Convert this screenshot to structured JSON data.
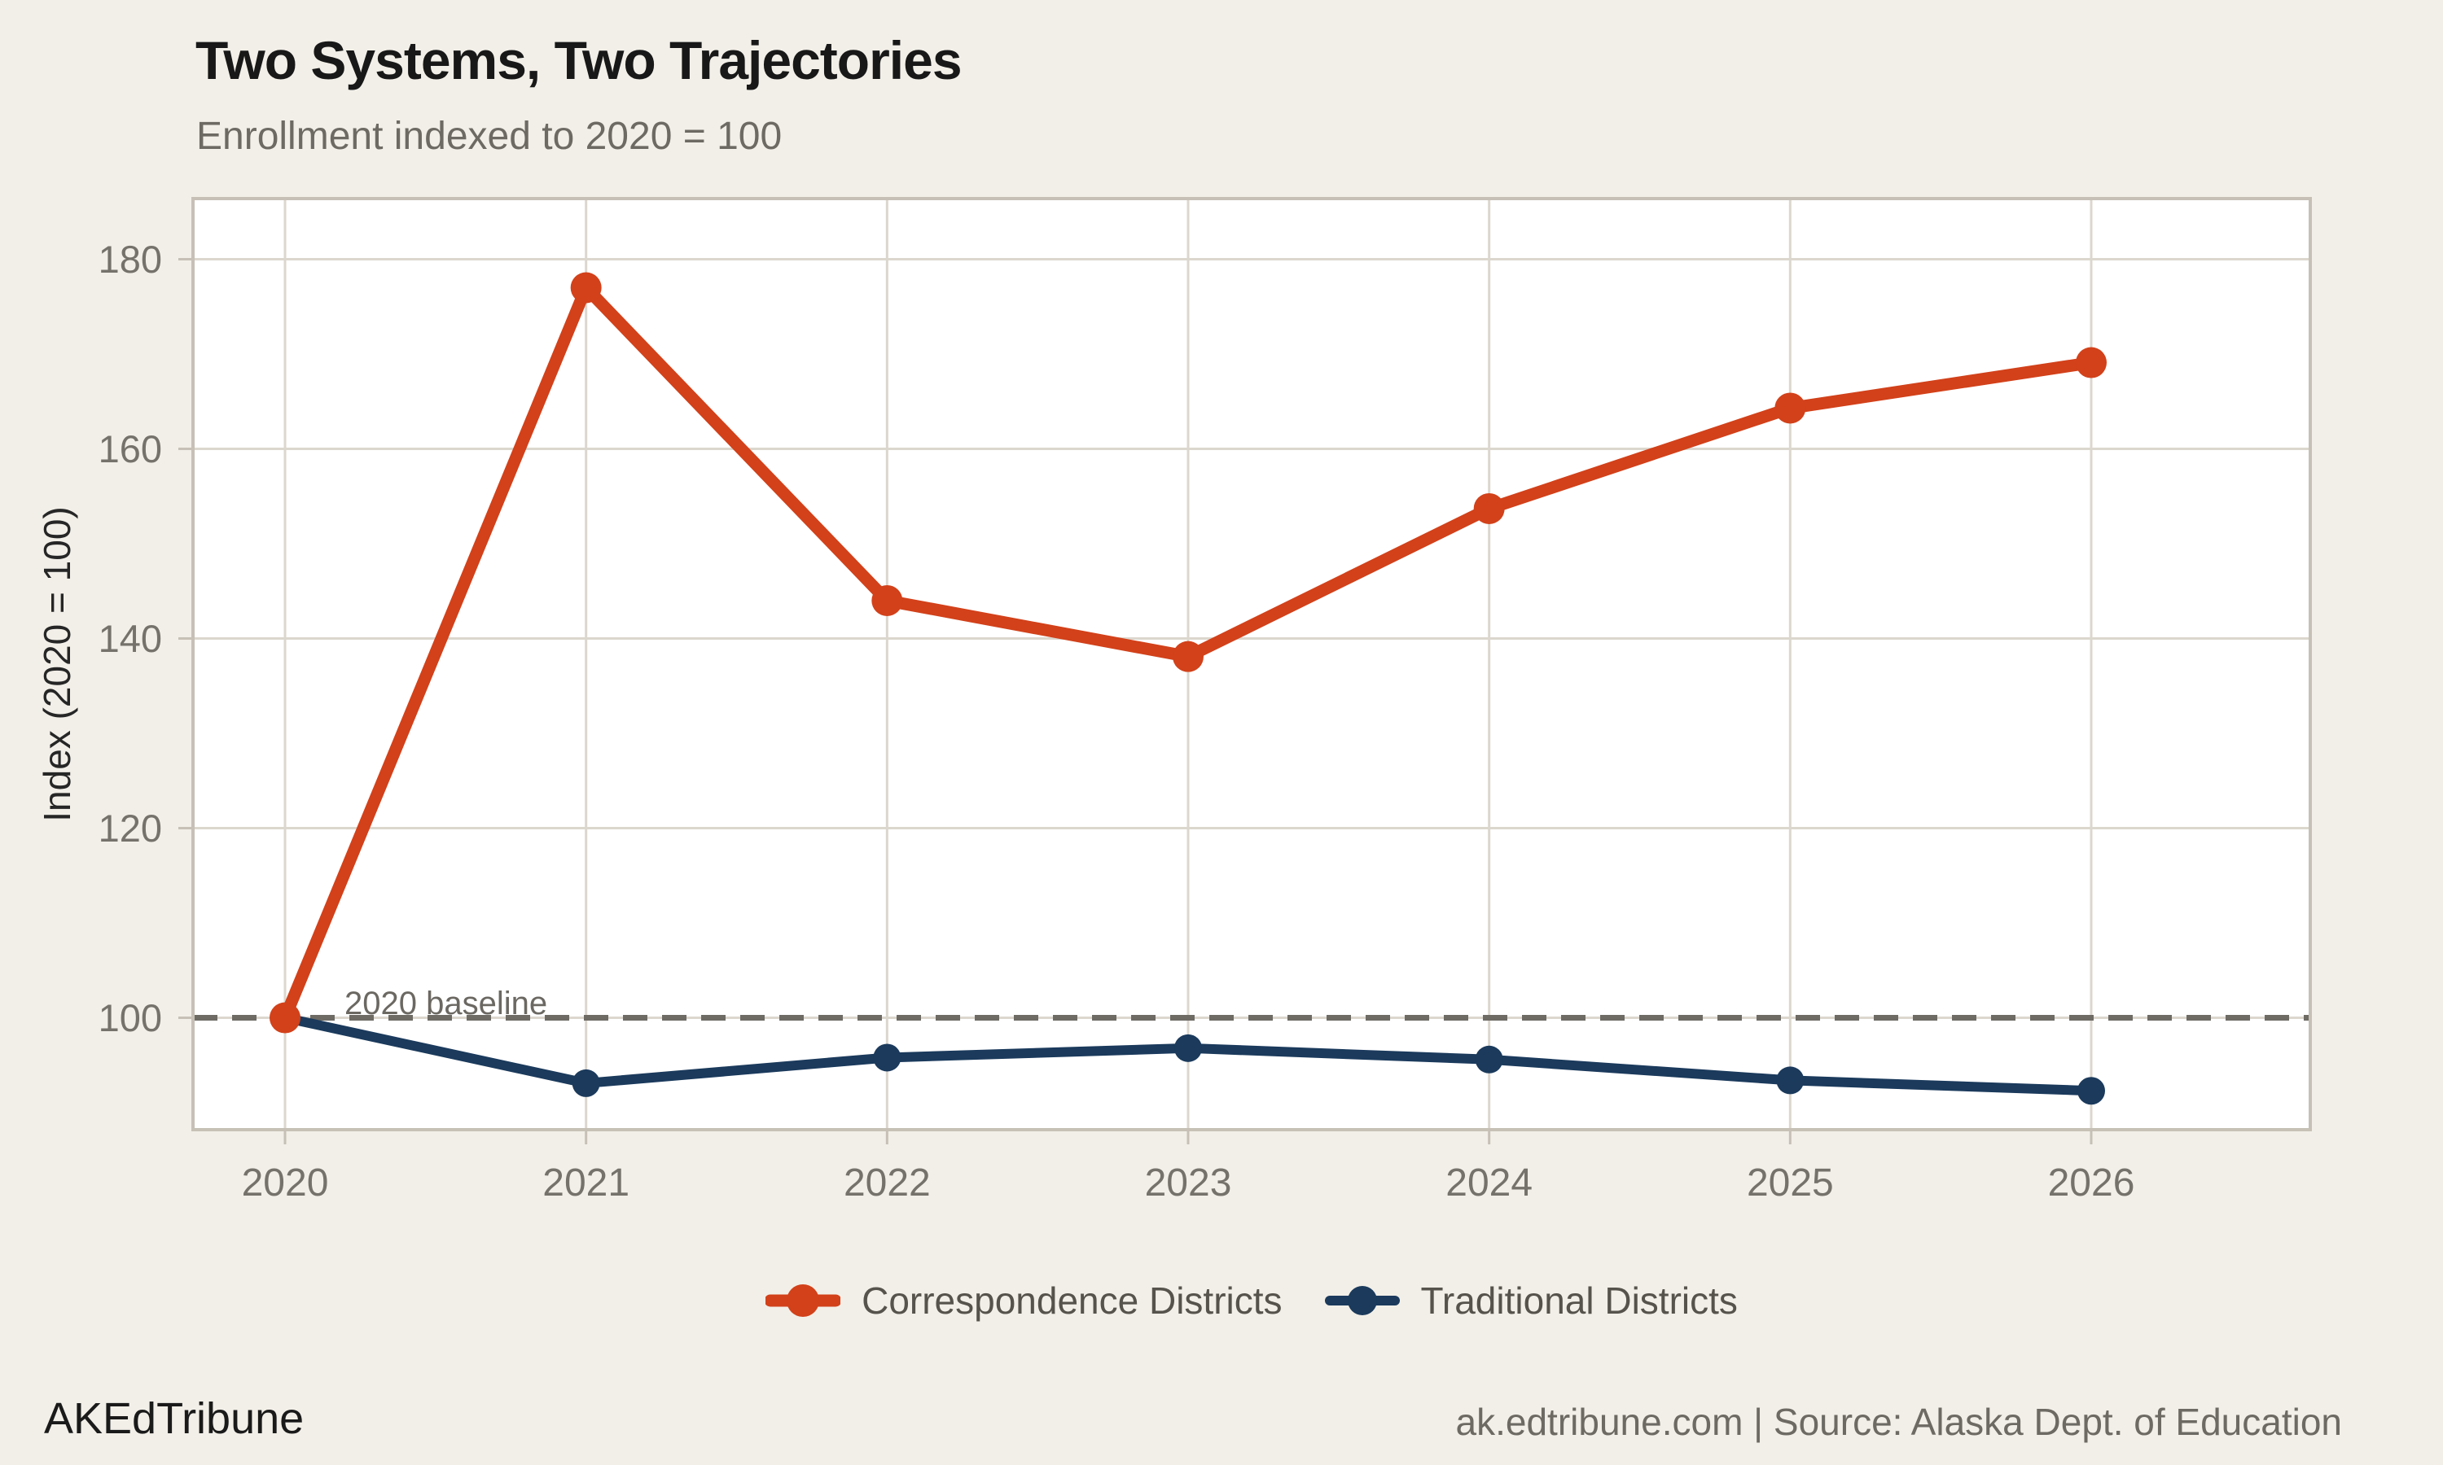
{
  "chart_data": {
    "type": "line",
    "title": "Two Systems, Two Trajectories",
    "subtitle": "Enrollment indexed to 2020 = 100",
    "x": [
      2020,
      2021,
      2022,
      2023,
      2024,
      2025,
      2026
    ],
    "series": [
      {
        "name": "Correspondence Districts",
        "color": "#d2411a",
        "values": [
          100,
          177,
          144,
          138.1,
          153.7,
          164.3,
          169.1
        ]
      },
      {
        "name": "Traditional Districts",
        "color": "#1b3a5c",
        "values": [
          100,
          93.1,
          95.8,
          96.8,
          95.6,
          93.4,
          92.3
        ]
      }
    ],
    "ylabel": "Index (2020 = 100)",
    "xlabel": "",
    "yticks": [
      100,
      120,
      140,
      160,
      180
    ],
    "ylim": [
      88.2,
      186.4
    ],
    "grid": true,
    "legend_position": "bottom",
    "baseline": {
      "value": 100,
      "label": "2020 baseline"
    }
  },
  "colors": {
    "background": "#f2efe8",
    "plot_background": "#ffffff",
    "grid": "#dcd7ce",
    "plot_border": "#c6c0b6",
    "baseline_dash": "#6e6b65",
    "muted_text": "#6d6a64"
  },
  "footer": {
    "brand": "AKEdTribune",
    "source": "ak.edtribune.com | Source: Alaska Dept. of Education"
  }
}
